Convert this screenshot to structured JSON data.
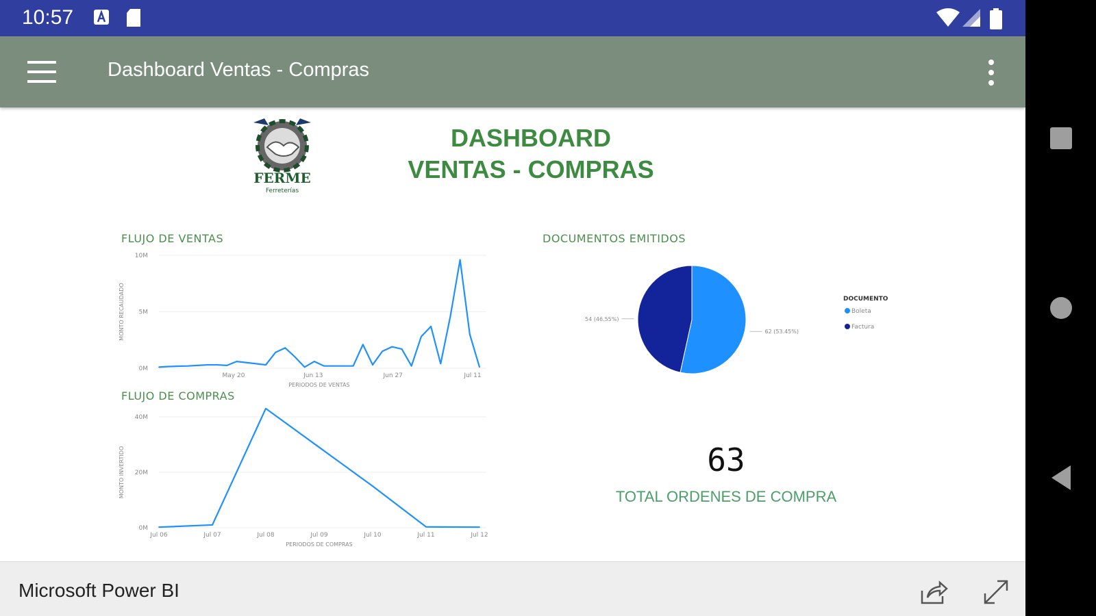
{
  "status_bar": {
    "time": "10:57"
  },
  "app_bar": {
    "title": "Dashboard Ventas - Compras"
  },
  "report": {
    "logo_text": "FERME",
    "logo_subtext": "Ferreterías",
    "title_line1": "DASHBOARD",
    "title_line2": "VENTAS - COMPRAS",
    "ventas_title": "FLUJO DE VENTAS",
    "compras_title": "FLUJO DE COMPRAS",
    "docs_title": "DOCUMENTOS EMITIDOS",
    "total_value": "63",
    "total_label": "TOTAL ORDENES DE COMPRA"
  },
  "bottom_bar": {
    "title": "Microsoft Power BI"
  },
  "colors": {
    "accent_green": "#3d8b40",
    "series_blue": "#1e90ff",
    "navy": "#13239a",
    "app_bar": "#7b8e7d",
    "status_bar": "#303f9f"
  },
  "icons": {
    "menu": "hamburger-icon",
    "more": "more-vert-icon",
    "share": "share-icon",
    "expand": "expand-icon",
    "wifi": "wifi-icon",
    "signal": "signal-icon",
    "battery": "battery-icon"
  },
  "chart_data": [
    {
      "type": "line",
      "title": "FLUJO DE VENTAS",
      "xlabel": "PERIODOS DE VENTAS",
      "ylabel": "MONTO RECAUDADO",
      "x_ticks": [
        "May 20",
        "Jun 13",
        "Jun 27",
        "Jul 11"
      ],
      "y_ticks": [
        "0M",
        "5M",
        "10M"
      ],
      "ylim": [
        0,
        10
      ],
      "grid": true,
      "series": [
        {
          "values": [
            0.1,
            0.15,
            0.18,
            0.2,
            0.25,
            0.3,
            0.3,
            0.25,
            0.6,
            0.5,
            0.4,
            0.3,
            1.4,
            1.8,
            1.0,
            0.1,
            0.6,
            0.2,
            0.2,
            0.2,
            0.2,
            2.1,
            0.3,
            1.5,
            1.9,
            1.7,
            0.2,
            2.8,
            3.7,
            0.4,
            4.6,
            9.6,
            3.0,
            0.1
          ]
        }
      ]
    },
    {
      "type": "line",
      "title": "FLUJO DE COMPRAS",
      "xlabel": "PERIODOS DE COMPRAS",
      "ylabel": "MONTO INVERTIDO",
      "categories": [
        "Jul 06",
        "Jul 07",
        "Jul 08",
        "Jul 09",
        "Jul 10",
        "Jul 11",
        "Jul 12"
      ],
      "y_ticks": [
        "0M",
        "20M",
        "40M"
      ],
      "ylim": [
        0,
        40
      ],
      "grid": true,
      "series": [
        {
          "values": [
            0.2,
            1,
            43,
            29,
            15,
            0.3,
            0.2
          ]
        }
      ]
    },
    {
      "type": "pie",
      "title": "DOCUMENTOS EMITIDOS",
      "legend_title": "DOCUMENTO",
      "legend_position": "right",
      "series": [
        {
          "name": "Boleta",
          "value": 62,
          "label": "62 (53.45%)",
          "color": "#1e90ff"
        },
        {
          "name": "Factura",
          "value": 54,
          "label": "54 (46.55%)",
          "color": "#13239a"
        }
      ]
    }
  ]
}
